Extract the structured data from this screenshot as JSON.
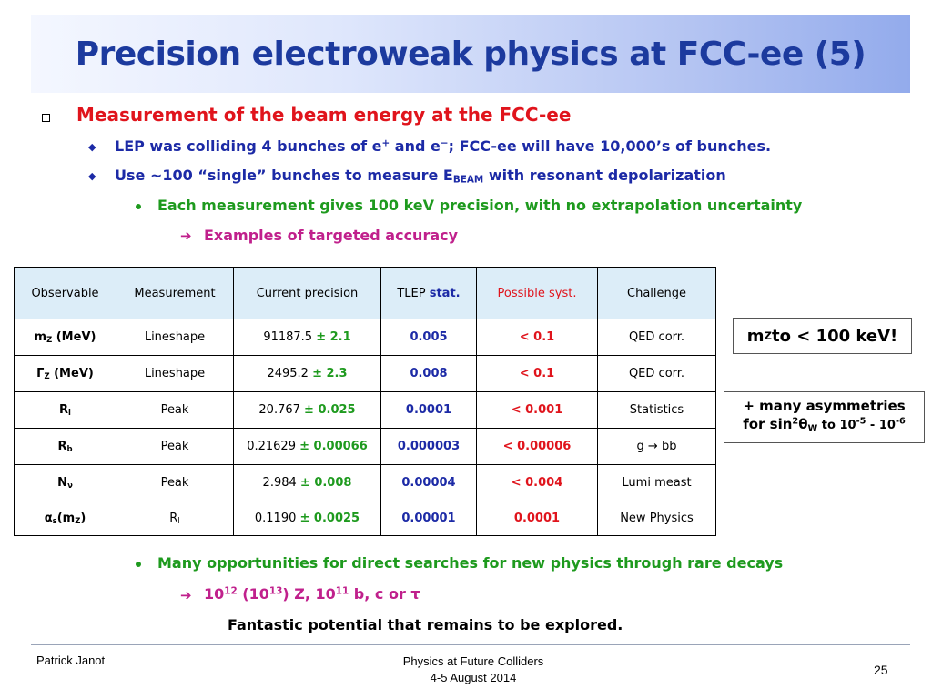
{
  "title": "Precision electroweak physics at FCC-ee (5)",
  "bullets": {
    "b1": "Measurement of the beam energy at the FCC-ee",
    "b2a_pre": "LEP was colliding 4 bunches of e",
    "b2a_sup1": "+",
    "b2a_mid": " and e",
    "b2a_sup2": "−",
    "b2a_post": "; FCC-ee will have 10,000’s of bunches.",
    "b2b_pre": "Use ~100 “single” bunches to measure E",
    "b2b_sub": "BEAM",
    "b2b_post": " with resonant depolarization",
    "b3a": "Each measurement gives 100 keV precision, with no extrapolation uncertainty",
    "b4a": "Examples of targeted accuracy",
    "b3b": "Many opportunities for direct searches for new physics through rare decays",
    "b4b_p1": "10",
    "b4b_s1": "12",
    "b4b_p2": " (10",
    "b4b_s2": "13",
    "b4b_p3": ") Z, 10",
    "b4b_s3": "11",
    "b4b_p4": " b, c or τ"
  },
  "table": {
    "headers": {
      "observable": "Observable",
      "measurement": "Measurement",
      "current": "Current precision",
      "tlep_pre": "TLEP ",
      "tlep_stat": "stat.",
      "syst": "Possible syst.",
      "challenge": "Challenge"
    },
    "rows": [
      {
        "obs_main": "m",
        "obs_sub": "Z",
        "obs_post": " (MeV)",
        "meas_main": "Lineshape",
        "meas_sub": "",
        "value": "91187.5",
        "err": "± 2.1",
        "stat": "0.005",
        "syst": "< 0.1",
        "challenge": "QED corr."
      },
      {
        "obs_main": "Γ",
        "obs_sub": "Z",
        "obs_post": " (MeV)",
        "meas_main": "Lineshape",
        "meas_sub": "",
        "value": "2495.2",
        "err": "± 2.3",
        "stat": "0.008",
        "syst": "< 0.1",
        "challenge": "QED corr."
      },
      {
        "obs_main": "R",
        "obs_sub": "l",
        "obs_post": "",
        "meas_main": "Peak",
        "meas_sub": "",
        "value": "20.767",
        "err": "± 0.025",
        "stat": "0.0001",
        "syst": "< 0.001",
        "challenge": "Statistics"
      },
      {
        "obs_main": "R",
        "obs_sub": "b",
        "obs_post": "",
        "meas_main": "Peak",
        "meas_sub": "",
        "value": "0.21629",
        "err": "± 0.00066",
        "stat": "0.000003",
        "syst": "< 0.00006",
        "challenge": "g → bb"
      },
      {
        "obs_main": "N",
        "obs_sub": "ν",
        "obs_post": "",
        "meas_main": "Peak",
        "meas_sub": "",
        "value": "2.984",
        "err": "± 0.008",
        "stat": "0.00004",
        "syst": "< 0.004",
        "challenge": "Lumi meast"
      },
      {
        "obs_main": "α",
        "obs_sub": "s",
        "obs_post": "(m",
        "obs_sub2": "Z",
        "obs_post2": ")",
        "meas_main": "R",
        "meas_sub": "l",
        "value": "0.1190",
        "err": "± 0.0025",
        "stat": "0.00001",
        "syst": "0.0001",
        "challenge": "New Physics"
      }
    ]
  },
  "callouts": {
    "box1_pre": "m",
    "box1_sub": "Z",
    "box1_post": " to < 100 keV!",
    "box2_line1": "+ many asymmetries",
    "box2_pre": "for sin",
    "box2_sup": "2",
    "box2_theta": "θ",
    "box2_sub": "W",
    "box2_mid": " to 10",
    "box2_e1": "-5",
    "box2_dash": " - 10",
    "box2_e2": "-6"
  },
  "conclusion": "Fantastic potential that remains to be explored.",
  "footer": {
    "author": "Patrick Janot",
    "event_line1": "Physics at Future Colliders",
    "event_line2": "4-5 August 2014",
    "page": "25"
  }
}
